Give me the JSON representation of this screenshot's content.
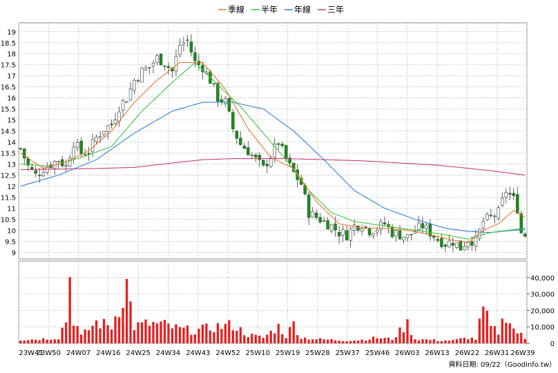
{
  "chart_data": {
    "type": "candlestick",
    "legend": [
      {
        "name": "季線",
        "color": "#e8762d"
      },
      {
        "name": "半年",
        "color": "#3cc43c"
      },
      {
        "name": "年線",
        "color": "#2f7fd8"
      },
      {
        "name": "三年",
        "color": "#c83c78"
      }
    ],
    "legend_position": "top",
    "grid": true,
    "price_axis": {
      "ylim": [
        8.7,
        19.4
      ],
      "ticks": [
        "19",
        "18.5",
        "18",
        "17.5",
        "17",
        "16.5",
        "16",
        "15.5",
        "15",
        "14.5",
        "14",
        "13.5",
        "13",
        "12.5",
        "12",
        "11.5",
        "11",
        "10.5",
        "10",
        "9.5",
        "9"
      ]
    },
    "volume_axis": {
      "ylim": [
        0,
        50000
      ],
      "ticks": [
        "40,000",
        "30,000",
        "20,000",
        "10,000",
        "0"
      ]
    },
    "x_ticks": [
      "23W41",
      "23W50",
      "24W07",
      "24W16",
      "24W25",
      "24W34",
      "24W43",
      "24W52",
      "25W10",
      "25W19",
      "25W28",
      "25W37",
      "25W46",
      "26W03",
      "26W13",
      "26W22",
      "26W31",
      "26W39"
    ],
    "price_keypoints": [
      [
        0,
        13.7
      ],
      [
        2,
        12.9
      ],
      [
        4,
        12.5
      ],
      [
        6,
        12.8
      ],
      [
        8,
        13.0
      ],
      [
        10,
        13.2
      ],
      [
        12,
        12.9
      ],
      [
        14,
        14.0
      ],
      [
        16,
        13.5
      ],
      [
        18,
        13.6
      ],
      [
        20,
        14.2
      ],
      [
        22,
        14.6
      ],
      [
        24,
        14.8
      ],
      [
        26,
        15.6
      ],
      [
        28,
        16.0
      ],
      [
        30,
        16.8
      ],
      [
        32,
        17.2
      ],
      [
        34,
        17.4
      ],
      [
        36,
        17.8
      ],
      [
        38,
        17.6
      ],
      [
        40,
        17.2
      ],
      [
        42,
        18.4
      ],
      [
        44,
        18.6
      ],
      [
        46,
        17.6
      ],
      [
        48,
        17.4
      ],
      [
        50,
        16.8
      ],
      [
        52,
        16.0
      ],
      [
        54,
        15.8
      ],
      [
        56,
        14.6
      ],
      [
        58,
        13.9
      ],
      [
        60,
        13.6
      ],
      [
        62,
        13.2
      ],
      [
        64,
        12.8
      ],
      [
        66,
        13.4
      ],
      [
        68,
        14.0
      ],
      [
        70,
        13.2
      ],
      [
        72,
        12.6
      ],
      [
        74,
        12.1
      ],
      [
        76,
        10.8
      ],
      [
        78,
        10.6
      ],
      [
        80,
        10.4
      ],
      [
        82,
        10.2
      ],
      [
        84,
        9.9
      ],
      [
        86,
        9.8
      ],
      [
        88,
        10.2
      ],
      [
        90,
        10.3
      ],
      [
        92,
        10.0
      ],
      [
        94,
        10.1
      ],
      [
        96,
        10.3
      ],
      [
        98,
        9.9
      ],
      [
        100,
        9.8
      ],
      [
        102,
        9.7
      ],
      [
        104,
        10.0
      ],
      [
        106,
        10.2
      ],
      [
        108,
        9.9
      ],
      [
        110,
        9.6
      ],
      [
        112,
        9.4
      ],
      [
        114,
        9.5
      ],
      [
        116,
        9.2
      ],
      [
        118,
        9.6
      ],
      [
        120,
        9.5
      ],
      [
        122,
        10.4
      ],
      [
        124,
        10.6
      ],
      [
        126,
        10.8
      ],
      [
        128,
        11.8
      ],
      [
        130,
        11.4
      ],
      [
        131,
        11.0
      ],
      [
        132,
        9.9
      ],
      [
        133,
        9.8
      ]
    ],
    "volume_keypoints": [
      [
        0,
        2500
      ],
      [
        5,
        3000
      ],
      [
        10,
        4000
      ],
      [
        12,
        17000
      ],
      [
        13,
        47000
      ],
      [
        14,
        18000
      ],
      [
        16,
        5000
      ],
      [
        20,
        15000
      ],
      [
        24,
        12000
      ],
      [
        28,
        42000
      ],
      [
        30,
        12000
      ],
      [
        34,
        14000
      ],
      [
        38,
        13000
      ],
      [
        42,
        10000
      ],
      [
        46,
        9000
      ],
      [
        52,
        12000
      ],
      [
        56,
        13000
      ],
      [
        60,
        6000
      ],
      [
        64,
        4000
      ],
      [
        68,
        12000
      ],
      [
        70,
        5000
      ],
      [
        72,
        14000
      ],
      [
        74,
        4000
      ],
      [
        78,
        3000
      ],
      [
        82,
        2500
      ],
      [
        86,
        2000
      ],
      [
        90,
        2500
      ],
      [
        94,
        4000
      ],
      [
        98,
        3000
      ],
      [
        102,
        14000
      ],
      [
        104,
        3000
      ],
      [
        108,
        2500
      ],
      [
        110,
        2000
      ],
      [
        114,
        2000
      ],
      [
        118,
        4000
      ],
      [
        120,
        3000
      ],
      [
        122,
        24000
      ],
      [
        124,
        11000
      ],
      [
        126,
        8000
      ],
      [
        128,
        22000
      ],
      [
        130,
        10000
      ],
      [
        132,
        6000
      ],
      [
        133,
        3000
      ]
    ],
    "ma_quarter": [
      [
        0,
        13.5
      ],
      [
        6,
        12.8
      ],
      [
        12,
        13.1
      ],
      [
        18,
        13.6
      ],
      [
        24,
        14.5
      ],
      [
        30,
        15.8
      ],
      [
        36,
        16.8
      ],
      [
        42,
        17.6
      ],
      [
        48,
        17.6
      ],
      [
        54,
        16.4
      ],
      [
        60,
        14.6
      ],
      [
        66,
        13.3
      ],
      [
        72,
        12.8
      ],
      [
        78,
        11.3
      ],
      [
        84,
        10.3
      ],
      [
        90,
        10.1
      ],
      [
        96,
        10.1
      ],
      [
        102,
        10.0
      ],
      [
        108,
        9.8
      ],
      [
        114,
        9.55
      ],
      [
        118,
        9.45
      ],
      [
        122,
        10.0
      ],
      [
        126,
        10.3
      ],
      [
        130,
        10.9
      ],
      [
        133,
        10.6
      ]
    ],
    "ma_halfyear": [
      [
        0,
        13.0
      ],
      [
        8,
        12.9
      ],
      [
        16,
        13.3
      ],
      [
        24,
        13.8
      ],
      [
        32,
        15.4
      ],
      [
        40,
        16.7
      ],
      [
        46,
        17.6
      ],
      [
        52,
        16.6
      ],
      [
        58,
        15.6
      ],
      [
        64,
        14.4
      ],
      [
        70,
        13.2
      ],
      [
        76,
        11.8
      ],
      [
        82,
        10.8
      ],
      [
        88,
        10.4
      ],
      [
        96,
        10.2
      ],
      [
        104,
        10.0
      ],
      [
        112,
        9.8
      ],
      [
        118,
        9.6
      ],
      [
        124,
        9.9
      ],
      [
        133,
        10.1
      ]
    ],
    "ma_year": [
      [
        0,
        12.0
      ],
      [
        10,
        12.5
      ],
      [
        20,
        13.2
      ],
      [
        30,
        14.4
      ],
      [
        40,
        15.4
      ],
      [
        48,
        15.8
      ],
      [
        56,
        15.8
      ],
      [
        64,
        15.5
      ],
      [
        72,
        14.5
      ],
      [
        80,
        13.2
      ],
      [
        88,
        11.8
      ],
      [
        96,
        11.0
      ],
      [
        104,
        10.5
      ],
      [
        112,
        10.1
      ],
      [
        118,
        9.95
      ],
      [
        124,
        9.9
      ],
      [
        133,
        10.05
      ]
    ],
    "ma_threeyear": [
      [
        0,
        12.75
      ],
      [
        20,
        12.8
      ],
      [
        30,
        12.85
      ],
      [
        40,
        13.05
      ],
      [
        48,
        13.2
      ],
      [
        56,
        13.25
      ],
      [
        70,
        13.25
      ],
      [
        90,
        13.15
      ],
      [
        110,
        12.95
      ],
      [
        124,
        12.7
      ],
      [
        133,
        12.5
      ]
    ],
    "footer_text": "資料日期: 09/22（Goodinfo.tw）"
  }
}
